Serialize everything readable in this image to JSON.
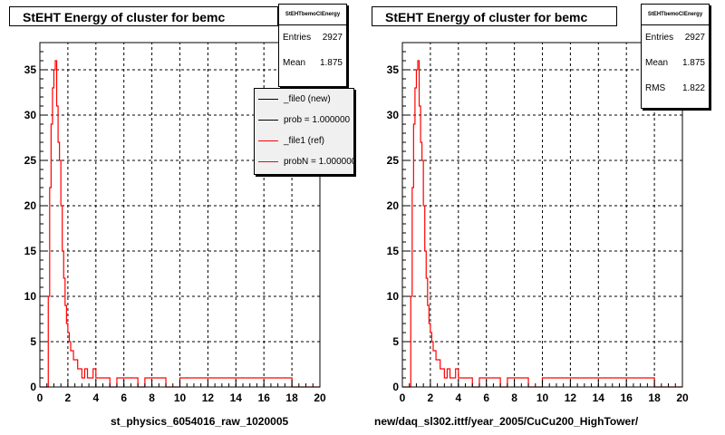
{
  "colors": {
    "ref_series": "#ff0000",
    "new_series": "#000000",
    "grid": "#000000",
    "frame": "#000000"
  },
  "panels": [
    {
      "title": "StEHT Energy of cluster for bemc",
      "xlabel": "st_physics_6054016_raw_1020005",
      "stats": {
        "title": "StEHTbemoClEnergy",
        "rows": [
          {
            "k": "Entries",
            "v": "2927"
          },
          {
            "k": "Mean",
            "v": "1.875"
          }
        ]
      },
      "legend": [
        {
          "text": "_file0 (new)",
          "color": "#000000"
        },
        {
          "text": "prob = 1.000000",
          "color": "#000000"
        },
        {
          "text": "_file1 (ref)",
          "color": "#ff0000"
        },
        {
          "text": "probN = 1.000000",
          "color": "#ff0000"
        }
      ]
    },
    {
      "title": "StEHT Energy of cluster for bemc",
      "xlabel": "new/daq_sl302.ittf/year_2005/CuCu200_HighTower/",
      "stats": {
        "title": "StEHTbemoClEnergy",
        "rows": [
          {
            "k": "Entries",
            "v": "2927"
          },
          {
            "k": "Mean",
            "v": "1.875"
          },
          {
            "k": "RMS",
            "v": "1.822"
          }
        ]
      }
    }
  ],
  "chart_data": [
    {
      "type": "line",
      "style": "step-histogram",
      "title": "StEHT Energy of cluster for bemc",
      "xlabel": "st_physics_6054016_raw_1020005",
      "ylabel": "",
      "xlim": [
        0,
        20
      ],
      "ylim": [
        0,
        38
      ],
      "xticks": [
        0,
        2,
        4,
        6,
        8,
        10,
        12,
        14,
        16,
        18,
        20
      ],
      "yticks": [
        0,
        5,
        10,
        15,
        20,
        25,
        30,
        35
      ],
      "grid": true,
      "legend_position": "top-right",
      "series": [
        {
          "name": "_file1 (ref)",
          "x": [
            0.0,
            0.5,
            0.6,
            0.7,
            0.8,
            0.9,
            1.0,
            1.1,
            1.2,
            1.3,
            1.4,
            1.5,
            1.6,
            1.7,
            1.8,
            1.9,
            2.0,
            2.1,
            2.2,
            2.3,
            2.4,
            2.5,
            2.6,
            2.7,
            2.8,
            2.9,
            3.0,
            3.2,
            3.4,
            3.6,
            3.8,
            4.0,
            4.2,
            4.4,
            4.6,
            4.8,
            5.0,
            5.5,
            6.0,
            6.5,
            7.0,
            7.5,
            8.0,
            9.0,
            10.0,
            12.0,
            14.0,
            16.0,
            18.0,
            20.0
          ],
          "y": [
            0,
            0,
            10,
            22,
            29,
            33,
            35,
            36,
            31,
            27,
            25,
            20,
            15,
            12,
            9,
            7,
            6,
            5,
            4,
            4,
            3,
            3,
            3,
            2,
            2,
            2,
            1,
            2,
            1,
            1,
            2,
            1,
            1,
            1,
            1,
            1,
            0,
            1,
            1,
            1,
            0,
            1,
            1,
            0,
            1,
            1,
            1,
            1,
            0,
            0
          ]
        },
        {
          "name": "_file0 (new)",
          "x": [
            0.0,
            0.5,
            0.6,
            0.7,
            0.8,
            0.9,
            1.0,
            1.1,
            1.2,
            1.3,
            1.4,
            1.5,
            1.6,
            1.7,
            1.8,
            1.9,
            2.0,
            2.1,
            2.2,
            2.3,
            2.4,
            2.5,
            2.6,
            2.7,
            2.8,
            2.9,
            3.0,
            3.2,
            3.4,
            3.6,
            3.8,
            4.0,
            4.2,
            4.4,
            4.6,
            4.8,
            5.0,
            5.5,
            6.0,
            6.5,
            7.0,
            7.5,
            8.0,
            9.0,
            10.0,
            12.0,
            14.0,
            16.0,
            18.0,
            20.0
          ],
          "y": [
            0,
            0,
            10,
            22,
            29,
            33,
            35,
            36,
            31,
            27,
            25,
            20,
            15,
            12,
            9,
            7,
            6,
            5,
            4,
            4,
            3,
            3,
            3,
            2,
            2,
            2,
            1,
            2,
            1,
            1,
            2,
            1,
            1,
            1,
            1,
            1,
            0,
            1,
            1,
            1,
            0,
            1,
            1,
            0,
            1,
            1,
            1,
            1,
            0,
            0
          ]
        }
      ]
    },
    {
      "type": "line",
      "style": "step-histogram",
      "title": "StEHT Energy of cluster for bemc",
      "xlabel": "new/daq_sl302.ittf/year_2005/CuCu200_HighTower/",
      "ylabel": "",
      "xlim": [
        0,
        20
      ],
      "ylim": [
        0,
        38
      ],
      "xticks": [
        0,
        2,
        4,
        6,
        8,
        10,
        12,
        14,
        16,
        18,
        20
      ],
      "yticks": [
        0,
        5,
        10,
        15,
        20,
        25,
        30,
        35
      ],
      "grid": true,
      "series": [
        {
          "name": "",
          "x": [
            0.0,
            0.5,
            0.6,
            0.7,
            0.8,
            0.9,
            1.0,
            1.1,
            1.2,
            1.3,
            1.4,
            1.5,
            1.6,
            1.7,
            1.8,
            1.9,
            2.0,
            2.1,
            2.2,
            2.3,
            2.4,
            2.5,
            2.6,
            2.7,
            2.8,
            2.9,
            3.0,
            3.2,
            3.4,
            3.6,
            3.8,
            4.0,
            4.2,
            4.4,
            4.6,
            4.8,
            5.0,
            5.5,
            6.0,
            6.5,
            7.0,
            7.5,
            8.0,
            9.0,
            10.0,
            12.0,
            14.0,
            16.0,
            18.0,
            20.0
          ],
          "y": [
            0,
            0,
            10,
            22,
            29,
            33,
            35,
            36,
            31,
            27,
            25,
            20,
            15,
            12,
            9,
            7,
            6,
            5,
            4,
            4,
            3,
            3,
            3,
            2,
            2,
            2,
            1,
            2,
            1,
            1,
            2,
            1,
            1,
            1,
            1,
            1,
            0,
            1,
            1,
            1,
            0,
            1,
            1,
            0,
            1,
            1,
            1,
            1,
            0,
            0
          ]
        }
      ]
    }
  ]
}
